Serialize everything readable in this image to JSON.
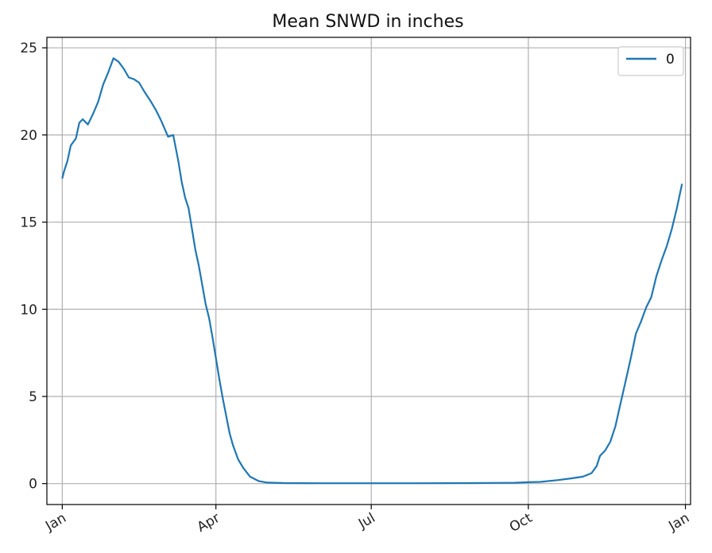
{
  "chart_data": {
    "type": "line",
    "title": "Mean  SNWD in inches",
    "xlabel": "",
    "ylabel": "",
    "xlim": [
      -9,
      368
    ],
    "ylim": [
      -1.2,
      25.6
    ],
    "x_ticks": [
      {
        "label": "Jan",
        "day": 0
      },
      {
        "label": "Apr",
        "day": 90
      },
      {
        "label": "Jul",
        "day": 181
      },
      {
        "label": "Oct",
        "day": 273
      },
      {
        "label": "Jan",
        "day": 365
      }
    ],
    "y_ticks": [
      0,
      5,
      10,
      15,
      20,
      25
    ],
    "grid": true,
    "legend": {
      "placement": "top-right",
      "entries": [
        "0"
      ]
    },
    "series": [
      {
        "name": "0",
        "color": "#1f77b4",
        "x": [
          0,
          1,
          3,
          5,
          8,
          10,
          12,
          15,
          18,
          21,
          24,
          27,
          30,
          33,
          36,
          39,
          42,
          45,
          48,
          52,
          55,
          58,
          62,
          65,
          68,
          70,
          72,
          74,
          76,
          78,
          80,
          82,
          84,
          86,
          88,
          90,
          92,
          94,
          96,
          98,
          100,
          103,
          106,
          110,
          115,
          120,
          130,
          150,
          180,
          210,
          240,
          265,
          273,
          280,
          290,
          298,
          305,
          310,
          313,
          315,
          318,
          321,
          324,
          327,
          330,
          333,
          336,
          339,
          342,
          345,
          348,
          351,
          354,
          357,
          360,
          363
        ],
        "y": [
          17.5,
          17.9,
          18.5,
          19.4,
          19.8,
          20.7,
          20.9,
          20.6,
          21.2,
          21.9,
          22.9,
          23.6,
          24.4,
          24.2,
          23.8,
          23.3,
          23.2,
          23.0,
          22.5,
          21.9,
          21.4,
          20.8,
          19.9,
          20.0,
          18.5,
          17.3,
          16.4,
          15.8,
          14.6,
          13.4,
          12.5,
          11.4,
          10.3,
          9.5,
          8.4,
          7.2,
          6.0,
          4.9,
          3.9,
          2.9,
          2.2,
          1.4,
          0.9,
          0.4,
          0.15,
          0.06,
          0.03,
          0.02,
          0.02,
          0.02,
          0.03,
          0.05,
          0.08,
          0.1,
          0.2,
          0.3,
          0.4,
          0.6,
          1.0,
          1.6,
          1.9,
          2.4,
          3.3,
          4.6,
          5.9,
          7.2,
          8.6,
          9.3,
          10.1,
          10.7,
          11.9,
          12.8,
          13.6,
          14.6,
          15.8,
          17.2
        ]
      }
    ]
  }
}
